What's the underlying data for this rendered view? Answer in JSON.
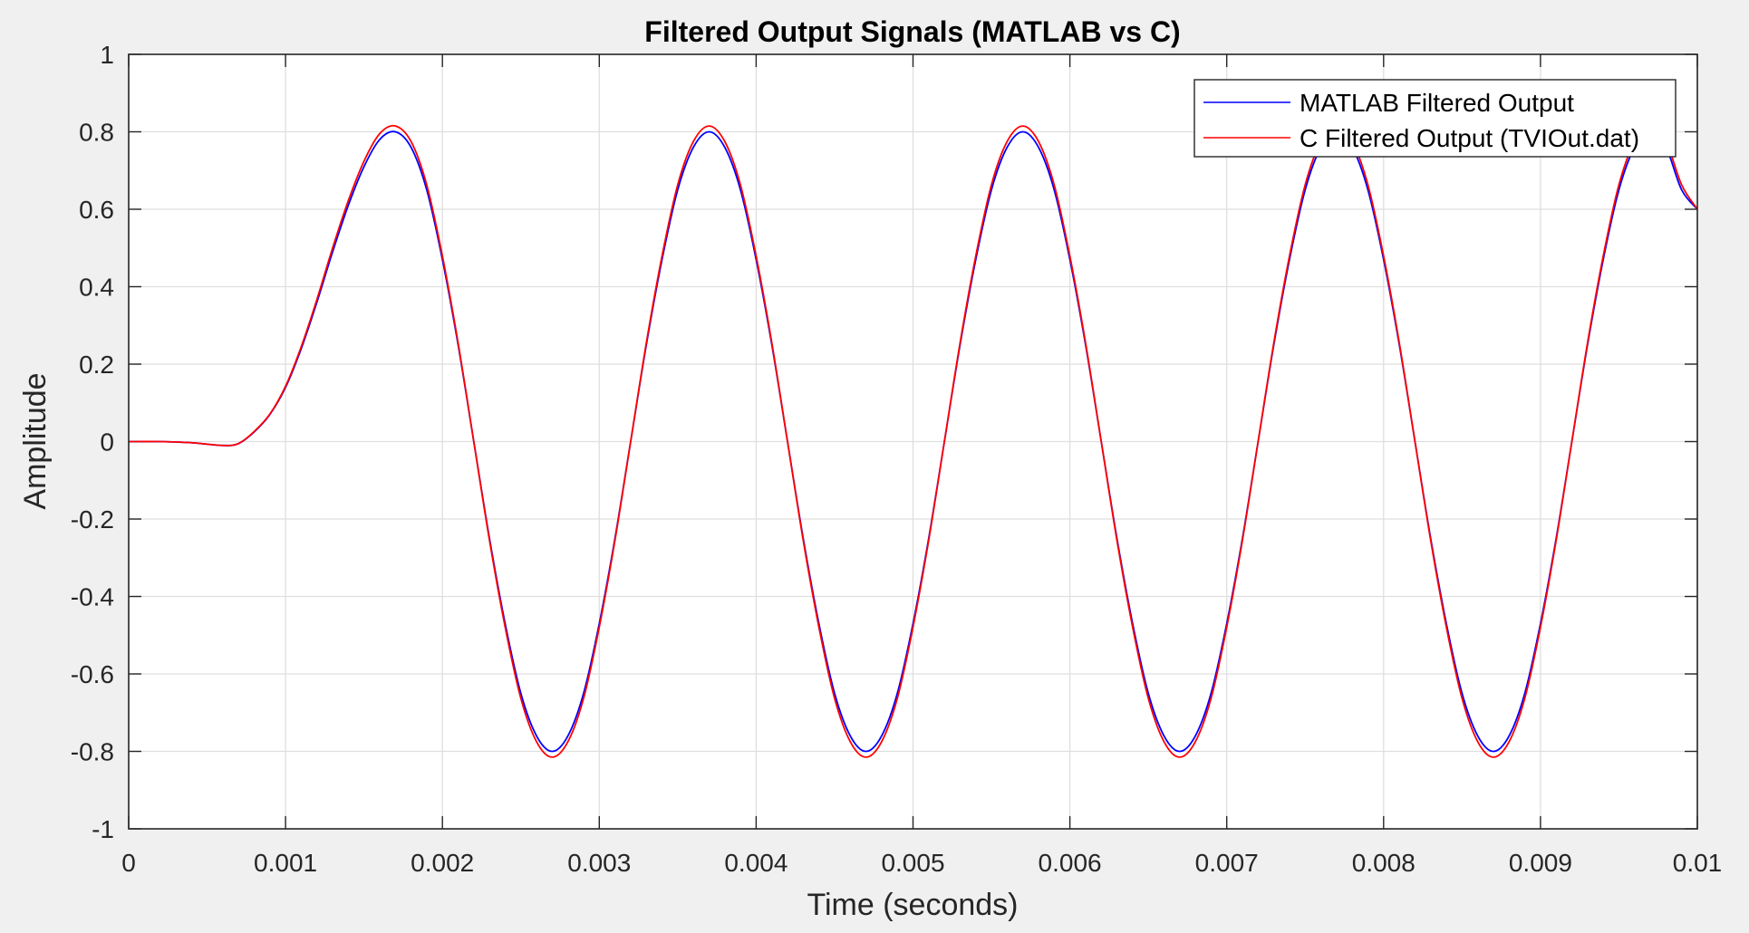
{
  "chart_data": {
    "type": "line",
    "title": "Filtered Output Signals (MATLAB vs C)",
    "xlabel": "Time (seconds)",
    "ylabel": "Amplitude",
    "xlim": [
      0,
      0.01
    ],
    "ylim": [
      -1,
      1
    ],
    "xticks": [
      0,
      0.001,
      0.002,
      0.003,
      0.004,
      0.005,
      0.006,
      0.007,
      0.008,
      0.009,
      0.01
    ],
    "xtick_labels": [
      "0",
      "0.001",
      "0.002",
      "0.003",
      "0.004",
      "0.005",
      "0.006",
      "0.007",
      "0.008",
      "0.009",
      "0.01"
    ],
    "yticks": [
      1,
      0.8,
      0.6,
      0.4,
      0.2,
      0,
      -0.2,
      -0.4,
      -0.6,
      -0.8,
      -1
    ],
    "ytick_labels": [
      "1",
      "0.8",
      "0.6",
      "0.4",
      "0.2",
      "0",
      "-0.2",
      "-0.4",
      "-0.6",
      "-0.8",
      "-1"
    ],
    "grid": true,
    "legend_position": "top-right",
    "series": [
      {
        "name": "MATLAB Filtered Output",
        "color": "#0000ff",
        "x": [
          0,
          0.0002,
          0.0004,
          0.0006,
          0.0007,
          0.0008,
          0.0009,
          0.001,
          0.0011,
          0.0012,
          0.0013,
          0.0014,
          0.0015,
          0.0016,
          0.0017,
          0.0018,
          0.0019,
          0.002,
          0.0021,
          0.0022,
          0.0023,
          0.0024,
          0.0025,
          0.0026,
          0.0027,
          0.0028,
          0.0029,
          0.003,
          0.0031,
          0.0032,
          0.0033,
          0.0034,
          0.0035,
          0.0036,
          0.0037,
          0.0038,
          0.0039,
          0.004,
          0.0041,
          0.0042,
          0.0043,
          0.0044,
          0.0045,
          0.0046,
          0.0047,
          0.0048,
          0.0049,
          0.005,
          0.0051,
          0.0052,
          0.0053,
          0.0054,
          0.0055,
          0.0056,
          0.0057,
          0.0058,
          0.0059,
          0.006,
          0.0061,
          0.0062,
          0.0063,
          0.0064,
          0.0065,
          0.0066,
          0.0067,
          0.0068,
          0.0069,
          0.007,
          0.0071,
          0.0072,
          0.0073,
          0.0074,
          0.0075,
          0.0076,
          0.0077,
          0.0078,
          0.0079,
          0.008,
          0.0081,
          0.0082,
          0.0083,
          0.0084,
          0.0085,
          0.0086,
          0.0087,
          0.0088,
          0.0089,
          0.009,
          0.0091,
          0.0092,
          0.0093,
          0.0094,
          0.0095,
          0.0096,
          0.0097,
          0.0098,
          0.0099,
          0.01
        ],
        "y": [
          0,
          0,
          -0.003,
          -0.01,
          -0.005,
          0.025,
          0.07,
          0.14,
          0.24,
          0.36,
          0.49,
          0.61,
          0.71,
          0.78,
          0.8,
          0.76,
          0.65,
          0.47,
          0.25,
          0,
          -0.25,
          -0.47,
          -0.65,
          -0.76,
          -0.8,
          -0.76,
          -0.65,
          -0.47,
          -0.25,
          0,
          0.25,
          0.47,
          0.65,
          0.76,
          0.8,
          0.76,
          0.65,
          0.47,
          0.25,
          0,
          -0.25,
          -0.47,
          -0.65,
          -0.76,
          -0.8,
          -0.76,
          -0.65,
          -0.47,
          -0.25,
          0,
          0.25,
          0.47,
          0.65,
          0.76,
          0.8,
          0.76,
          0.65,
          0.47,
          0.25,
          0,
          -0.25,
          -0.47,
          -0.65,
          -0.76,
          -0.8,
          -0.76,
          -0.65,
          -0.47,
          -0.25,
          0,
          0.25,
          0.47,
          0.65,
          0.76,
          0.8,
          0.76,
          0.65,
          0.47,
          0.25,
          0,
          -0.25,
          -0.47,
          -0.65,
          -0.76,
          -0.8,
          -0.76,
          -0.65,
          -0.47,
          -0.25,
          0,
          0.25,
          0.47,
          0.65,
          0.76,
          0.8,
          0.76,
          0.65,
          0.6
        ]
      },
      {
        "name": "C Filtered Output (TVIOut.dat)",
        "color": "#ff0000",
        "x": [
          0,
          0.0002,
          0.0004,
          0.0006,
          0.0007,
          0.0008,
          0.0009,
          0.001,
          0.0011,
          0.0012,
          0.0013,
          0.0014,
          0.0015,
          0.0016,
          0.0017,
          0.0018,
          0.0019,
          0.002,
          0.0021,
          0.0022,
          0.0023,
          0.0024,
          0.0025,
          0.0026,
          0.0027,
          0.0028,
          0.0029,
          0.003,
          0.0031,
          0.0032,
          0.0033,
          0.0034,
          0.0035,
          0.0036,
          0.0037,
          0.0038,
          0.0039,
          0.004,
          0.0041,
          0.0042,
          0.0043,
          0.0044,
          0.0045,
          0.0046,
          0.0047,
          0.0048,
          0.0049,
          0.005,
          0.0051,
          0.0052,
          0.0053,
          0.0054,
          0.0055,
          0.0056,
          0.0057,
          0.0058,
          0.0059,
          0.006,
          0.0061,
          0.0062,
          0.0063,
          0.0064,
          0.0065,
          0.0066,
          0.0067,
          0.0068,
          0.0069,
          0.007,
          0.0071,
          0.0072,
          0.0073,
          0.0074,
          0.0075,
          0.0076,
          0.0077,
          0.0078,
          0.0079,
          0.008,
          0.0081,
          0.0082,
          0.0083,
          0.0084,
          0.0085,
          0.0086,
          0.0087,
          0.0088,
          0.0089,
          0.009,
          0.0091,
          0.0092,
          0.0093,
          0.0094,
          0.0095,
          0.0096,
          0.0097,
          0.0098,
          0.0099,
          0.01
        ],
        "y": [
          0,
          0,
          -0.003,
          -0.01,
          -0.005,
          0.026,
          0.071,
          0.143,
          0.245,
          0.367,
          0.5,
          0.622,
          0.724,
          0.795,
          0.815,
          0.775,
          0.663,
          0.479,
          0.255,
          0,
          -0.255,
          -0.479,
          -0.663,
          -0.775,
          -0.815,
          -0.775,
          -0.663,
          -0.479,
          -0.255,
          0,
          0.255,
          0.479,
          0.663,
          0.775,
          0.815,
          0.775,
          0.663,
          0.479,
          0.255,
          0,
          -0.255,
          -0.479,
          -0.663,
          -0.775,
          -0.815,
          -0.775,
          -0.663,
          -0.479,
          -0.255,
          0,
          0.255,
          0.479,
          0.663,
          0.775,
          0.815,
          0.775,
          0.663,
          0.479,
          0.255,
          0,
          -0.255,
          -0.479,
          -0.663,
          -0.775,
          -0.815,
          -0.775,
          -0.663,
          -0.479,
          -0.255,
          0,
          0.255,
          0.479,
          0.663,
          0.775,
          0.815,
          0.775,
          0.663,
          0.479,
          0.255,
          0,
          -0.255,
          -0.479,
          -0.663,
          -0.775,
          -0.815,
          -0.775,
          -0.663,
          -0.479,
          -0.255,
          0,
          0.255,
          0.479,
          0.663,
          0.775,
          0.815,
          0.775,
          0.663,
          0.6
        ]
      }
    ]
  }
}
